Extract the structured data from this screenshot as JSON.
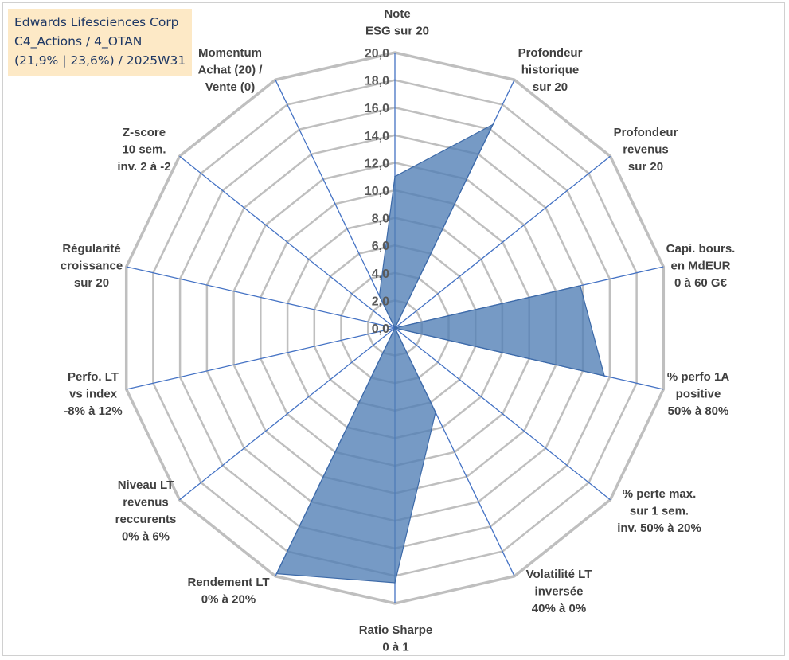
{
  "title": {
    "line1": "Edwards Lifesciences Corp",
    "line2": "C4_Actions / 4_OTAN",
    "line3": "(21,9% | 23,6%) / 2025W31"
  },
  "colors": {
    "grid": "#bfbfbf",
    "spoke": "#4472c4",
    "fill": "#4f7db5",
    "stroke": "#3d6aa8",
    "title_bg": "#fde9c6",
    "title_text": "#1f3864"
  },
  "chart_data": {
    "type": "radar",
    "rlim": [
      0,
      20
    ],
    "r_ticks": [
      "0,0",
      "2,0",
      "4,0",
      "6,0",
      "8,0",
      "10,0",
      "12,0",
      "14,0",
      "16,0",
      "18,0",
      "20,0"
    ],
    "grid": true,
    "categories": [
      [
        "Note",
        "ESG sur 20"
      ],
      [
        "Profondeur",
        "historique",
        "sur 20"
      ],
      [
        "Profondeur",
        "revenus",
        "sur 20"
      ],
      [
        "Capi. bours.",
        "en MdEUR",
        "0 à 60 G€"
      ],
      [
        "% perfo 1A",
        "positive",
        "50% à 80%"
      ],
      [
        "% perte max.",
        "sur 1 sem.",
        "inv. 50% à 20%"
      ],
      [
        "Volatilité LT",
        "inversée",
        "40% à 0%"
      ],
      [
        "Ratio Sharpe",
        "0 à 1"
      ],
      [
        "Rendement LT",
        "0% à 20%"
      ],
      [
        "Niveau LT",
        "revenus",
        "reccurents",
        "0% à 6%"
      ],
      [
        "Perfo. LT",
        "vs index",
        "-8% à 12%"
      ],
      [
        "Régularité",
        "croissance",
        "sur 20"
      ],
      [
        "Z-score",
        "10 sem.",
        "inv. 2 à -2"
      ],
      [
        "Momentum",
        "Achat (20) /",
        "Vente (0)"
      ]
    ],
    "series": [
      {
        "values": [
          11.0,
          16.4,
          0.0,
          13.8,
          15.6,
          0.0,
          6.8,
          18.5,
          19.8,
          0.0,
          0.0,
          0.0,
          0.0,
          2.6
        ]
      }
    ]
  }
}
